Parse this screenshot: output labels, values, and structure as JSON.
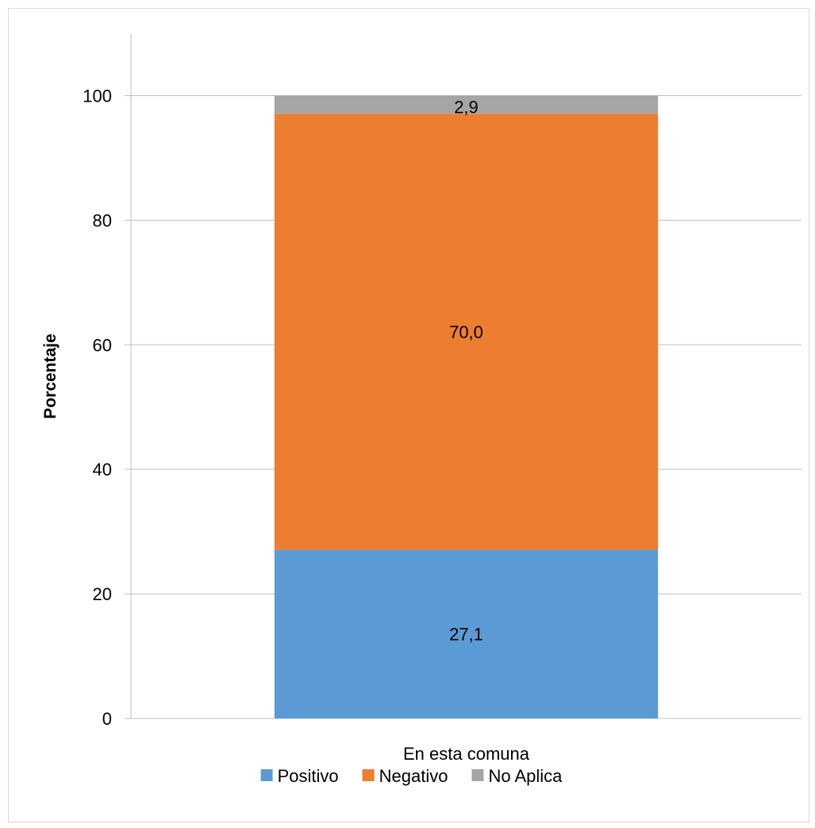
{
  "chart_data": {
    "type": "bar",
    "stacked": true,
    "categories": [
      "En esta comuna"
    ],
    "series": [
      {
        "name": "Positivo",
        "values": [
          27.1
        ],
        "labels": [
          "27,1"
        ],
        "color": "#5b9bd5"
      },
      {
        "name": "Negativo",
        "values": [
          70.0
        ],
        "labels": [
          "70,0"
        ],
        "color": "#ed7d31"
      },
      {
        "name": "No Aplica",
        "values": [
          2.9
        ],
        "labels": [
          "2,9"
        ],
        "color": "#a5a5a5"
      }
    ],
    "ylabel": "Porcentaje",
    "xlabel": "",
    "ylim": [
      0,
      110
    ],
    "yticks": [
      0,
      20,
      40,
      60,
      80,
      100
    ],
    "grid": true,
    "legend": "bottom"
  }
}
